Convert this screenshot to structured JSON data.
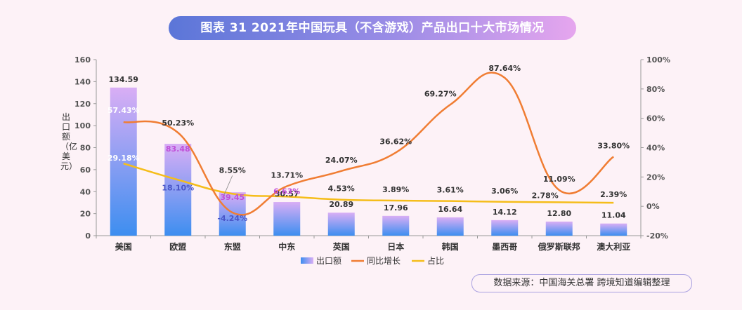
{
  "title": "图表 31  2021年中国玩具（不含游戏）产品出口十大市场情况",
  "source": "数据来源：中国海关总署  跨境知道编辑整理",
  "chart_data": {
    "type": "bar",
    "title": "图表 31  2021年中国玩具（不含游戏）产品出口十大市场情况",
    "categories": [
      "美国",
      "欧盟",
      "东盟",
      "中东",
      "英国",
      "日本",
      "韩国",
      "墨西哥",
      "俄罗斯联邦",
      "澳大利亚"
    ],
    "series": [
      {
        "name": "出口额",
        "type": "bar",
        "axis": "left",
        "values": [
          134.59,
          83.48,
          39.45,
          30.57,
          20.89,
          17.96,
          16.64,
          14.12,
          12.8,
          11.04
        ],
        "labels": [
          "134.59",
          "83.48",
          "39.45",
          "30.57",
          "20.89",
          "17.96",
          "16.64",
          "14.12",
          "12.80",
          "11.04"
        ]
      },
      {
        "name": "同比增长",
        "type": "line",
        "axis": "right",
        "values": [
          57.43,
          50.23,
          -4.24,
          13.71,
          24.07,
          36.62,
          69.27,
          87.64,
          11.09,
          33.8
        ],
        "labels": [
          "57.43%",
          "50.23%",
          "-4.24%",
          "13.71%",
          "24.07%",
          "36.62%",
          "69.27%",
          "87.64%",
          "11.09%",
          "33.80%"
        ]
      },
      {
        "name": "占比",
        "type": "line",
        "axis": "right",
        "values": [
          29.18,
          18.1,
          8.55,
          6.63,
          4.53,
          3.89,
          3.61,
          3.06,
          2.78,
          2.39
        ],
        "labels": [
          "29.18%",
          "18.10%",
          "8.55%",
          "6.63%",
          "4.53%",
          "3.89%",
          "3.61%",
          "3.06%",
          "2.78%",
          "2.39%"
        ]
      }
    ],
    "ylabel": "出口额（亿美元）",
    "ylim": [
      0,
      160
    ],
    "yticks": [
      "0",
      "20",
      "40",
      "60",
      "80",
      "100",
      "120",
      "140",
      "160"
    ],
    "y2lim": [
      -20,
      100
    ],
    "y2ticks": [
      "-20%",
      "0%",
      "20%",
      "40%",
      "60%",
      "80%",
      "100%"
    ],
    "colors": {
      "bar_top": "#d9aef5",
      "bar_bottom": "#3d8ef0",
      "growth": "#f07d33",
      "share": "#f5bd1a",
      "axis": "#555555"
    }
  }
}
